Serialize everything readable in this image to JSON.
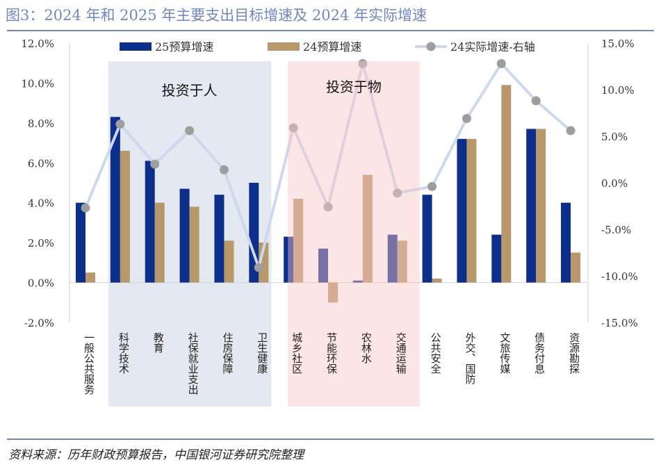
{
  "title": "图3：2024 年和 2025 年主要支出目标增速及 2024 年实际增速",
  "source": "资料来源：历年财政预算报告，中国银河证券研究院整理",
  "chart_data": {
    "type": "bar+line",
    "categories": [
      "一般公共服务",
      "科学技术",
      "教育",
      "社保就业支出",
      "住房保障",
      "卫生健康",
      "城乡社区",
      "节能环保",
      "农林水",
      "交通运输",
      "公共安全",
      "外交、国防",
      "文旅传媒",
      "债务付息",
      "资源勘探"
    ],
    "series": [
      {
        "name": "25预算增速",
        "type": "bar",
        "axis": "left",
        "color": "#0B2F8A",
        "values": [
          4.0,
          8.3,
          6.1,
          4.7,
          4.4,
          5.0,
          2.3,
          1.7,
          0.1,
          2.4,
          4.4,
          7.2,
          2.4,
          7.7,
          4.0
        ]
      },
      {
        "name": "24预算增速",
        "type": "bar",
        "axis": "left",
        "color": "#B8976A",
        "values": [
          0.5,
          6.6,
          4.0,
          3.8,
          2.1,
          2.0,
          4.2,
          -1.0,
          5.4,
          2.1,
          0.2,
          7.2,
          9.9,
          7.7,
          1.5
        ]
      },
      {
        "name": "24实际增速-右轴",
        "type": "line",
        "axis": "right",
        "color": "#CBD8EE",
        "marker_color": "#9E9E9E",
        "values": [
          -2.7,
          6.3,
          2.0,
          5.6,
          1.4,
          -9.1,
          5.9,
          -2.6,
          12.8,
          -1.1,
          -0.4,
          6.9,
          12.8,
          8.8,
          5.6
        ]
      }
    ],
    "left_axis": {
      "min": -2,
      "max": 12,
      "ticks": [
        "-2.0%",
        "0.0%",
        "2.0%",
        "4.0%",
        "6.0%",
        "8.0%",
        "10.0%",
        "12.0%"
      ]
    },
    "right_axis": {
      "min": -15,
      "max": 15,
      "ticks": [
        "-15.0%",
        "-10.0%",
        "-5.0%",
        "0.0%",
        "5.0%",
        "10.0%",
        "15.0%"
      ]
    },
    "legend": "top",
    "grid": false,
    "annotations": [
      {
        "text": "投资于人",
        "range": [
          "科学技术",
          "卫生健康"
        ],
        "color": "#E4E8F0"
      },
      {
        "text": "投资于物",
        "range": [
          "城乡社区",
          "交通运输"
        ],
        "color": "#FDE3E3"
      }
    ]
  }
}
